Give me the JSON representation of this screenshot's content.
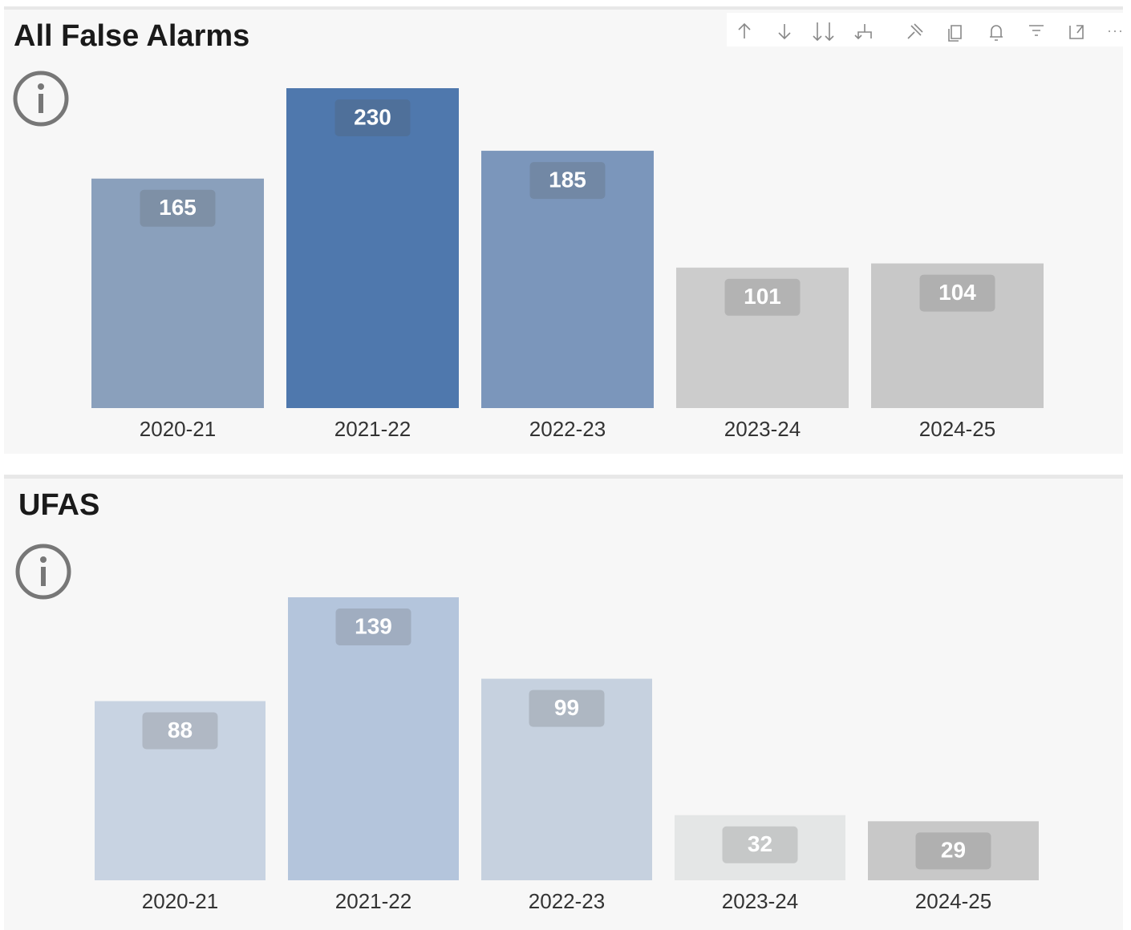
{
  "chart_data": [
    {
      "type": "bar",
      "title": "All False Alarms",
      "categories": [
        "2020-21",
        "2021-22",
        "2022-23",
        "2023-24",
        "2024-25"
      ],
      "values": [
        165,
        230,
        185,
        101,
        104
      ],
      "colors": [
        "#8aa0bc",
        "#4f78ad",
        "#7b96bb",
        "#cccccc",
        "#c8c8c8"
      ]
    },
    {
      "type": "bar",
      "title": "UFAS",
      "categories": [
        "2020-21",
        "2021-22",
        "2022-23",
        "2023-24",
        "2024-25"
      ],
      "values": [
        88,
        139,
        99,
        32,
        29
      ],
      "colors": [
        "#c8d3e2",
        "#b4c5dc",
        "#c6d1df",
        "#e4e6e6",
        "#c8c8c8"
      ]
    }
  ]
}
